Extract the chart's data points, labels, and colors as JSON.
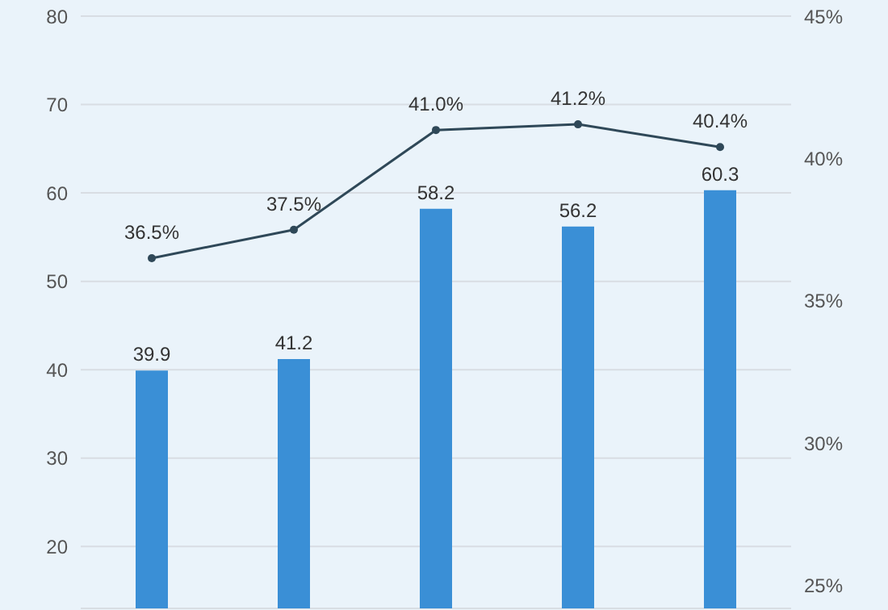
{
  "chart_data": {
    "type": "bar",
    "categories": [
      null,
      null,
      null,
      null,
      null
    ],
    "series": [
      {
        "color": "#3a8fd6",
        "values": [
          39.9,
          41.2,
          58.2,
          56.2,
          60.3
        ],
        "value_labels": [
          "39.9",
          "41.2",
          "58.2",
          "56.2",
          "60.3"
        ]
      },
      {
        "type": "line",
        "axis": "y2",
        "color": "#2f4858",
        "values": [
          36.5,
          37.5,
          41.0,
          41.2,
          40.4
        ],
        "value_labels": [
          "36.5%",
          "37.5%",
          "41.0%",
          "41.2%",
          "40.4%"
        ]
      }
    ],
    "ylim": [
      13,
      80
    ],
    "yticks": [
      20,
      30,
      40,
      50,
      60,
      70,
      80
    ],
    "y2lim": [
      24.2,
      45
    ],
    "y2ticks": [
      {
        "value": 25,
        "label": "25%"
      },
      {
        "value": 30,
        "label": "30%"
      },
      {
        "value": 35,
        "label": "35%"
      },
      {
        "value": 40,
        "label": "40%"
      },
      {
        "value": 45,
        "label": "45%"
      }
    ],
    "grid": "y",
    "marker": "circle",
    "tick_labels": "y",
    "legend": false
  }
}
